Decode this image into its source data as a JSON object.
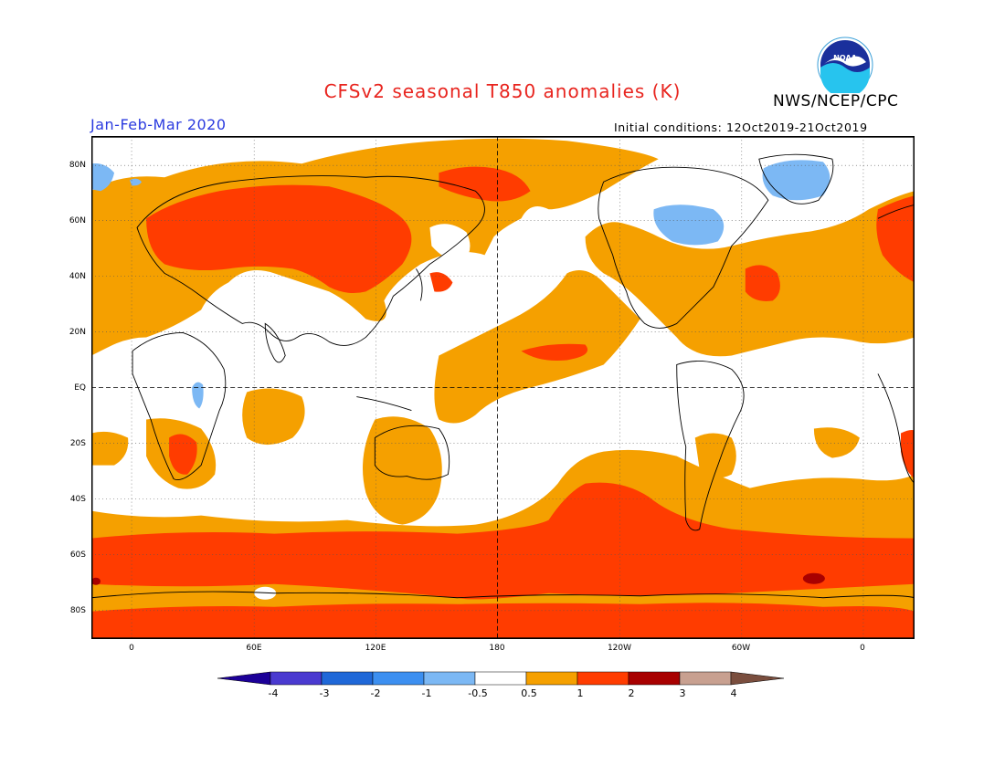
{
  "header": {
    "title": "CFSv2 seasonal T850 anomalies (K)",
    "agency": "NWS/NCEP/CPC",
    "season": "Jan-Feb-Mar 2020",
    "initial_conditions": "Initial conditions: 12Oct2019-21Oct2019",
    "logo_text": "NOAA"
  },
  "axes": {
    "lat_labels": [
      "80N",
      "60N",
      "40N",
      "20N",
      "EQ",
      "20S",
      "40S",
      "60S",
      "80S"
    ],
    "lon_labels": [
      "0",
      "60E",
      "120E",
      "180",
      "120W",
      "60W",
      "0"
    ]
  },
  "colorbar": {
    "labels": [
      "-4",
      "-3",
      "-2",
      "-1",
      "-0.5",
      "0.5",
      "1",
      "2",
      "3",
      "4"
    ],
    "colors": [
      "#1c0098",
      "#4a3ad0",
      "#1f68d8",
      "#3c8ff0",
      "#7cb8f4",
      "#ffffff",
      "#f5a000",
      "#ff3c00",
      "#a80000",
      "#c8a090",
      "#7a4e3e"
    ]
  },
  "map_legend": {
    "levels": [
      "0.5-1",
      "1-2",
      "2-3",
      "-0.5 to -1"
    ]
  }
}
